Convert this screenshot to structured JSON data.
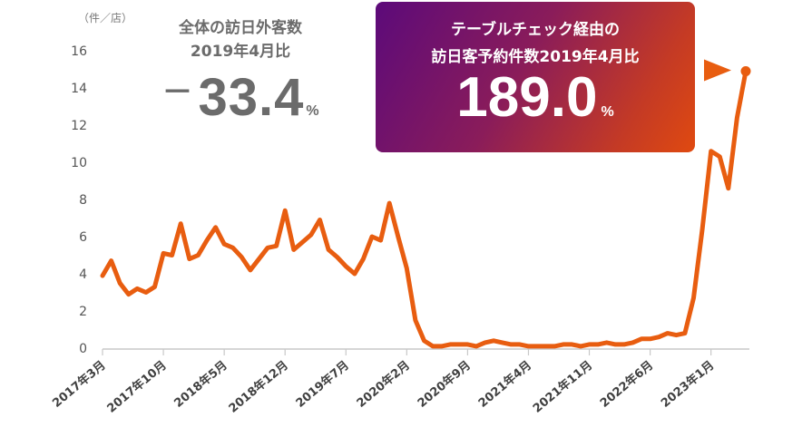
{
  "chart_data": {
    "type": "line",
    "unit_label": "（件／店）",
    "ylim": [
      0,
      16
    ],
    "y_ticks": [
      0,
      2,
      4,
      6,
      8,
      10,
      12,
      14,
      16
    ],
    "x_tick_labels": [
      "2017年3月",
      "2017年10月",
      "2018年5月",
      "2018年12月",
      "2019年7月",
      "2020年2月",
      "2020年9月",
      "2021年4月",
      "2021年11月",
      "2022年6月",
      "2023年1月"
    ],
    "x_start_month": "2017年3月",
    "x_end_month": "2023年5月",
    "series": [
      {
        "name": "",
        "color": "#e85d10",
        "values": [
          3.9,
          4.7,
          3.5,
          2.9,
          3.2,
          3.0,
          3.3,
          5.1,
          5.0,
          6.7,
          4.8,
          5.0,
          5.8,
          6.5,
          5.6,
          5.4,
          4.9,
          4.2,
          4.8,
          5.4,
          5.5,
          7.4,
          5.3,
          5.7,
          6.1,
          6.9,
          5.3,
          4.9,
          4.4,
          4.0,
          4.8,
          6.0,
          5.8,
          7.8,
          6.0,
          4.3,
          1.5,
          0.4,
          0.1,
          0.1,
          0.2,
          0.2,
          0.2,
          0.1,
          0.3,
          0.4,
          0.3,
          0.2,
          0.2,
          0.1,
          0.1,
          0.1,
          0.1,
          0.2,
          0.2,
          0.1,
          0.2,
          0.2,
          0.3,
          0.2,
          0.2,
          0.3,
          0.5,
          0.5,
          0.6,
          0.8,
          0.7,
          0.8,
          2.7,
          6.4,
          10.6,
          10.3,
          8.6,
          12.4,
          14.9
        ]
      }
    ],
    "end_marker_value": 14.9
  },
  "left_stat": {
    "line1": "全体の訪日外客数",
    "line2": "2019年4月比",
    "sign": "－",
    "value": "33.4",
    "unit": "%"
  },
  "right_stat": {
    "line1": "テーブルチェック経由の",
    "line2": "訪日客予約件数2019年4月比",
    "value": "189.0",
    "unit": "%"
  },
  "colors": {
    "line": "#e85d10",
    "axis": "#c8c8c8",
    "arrow": "#e85d10"
  }
}
